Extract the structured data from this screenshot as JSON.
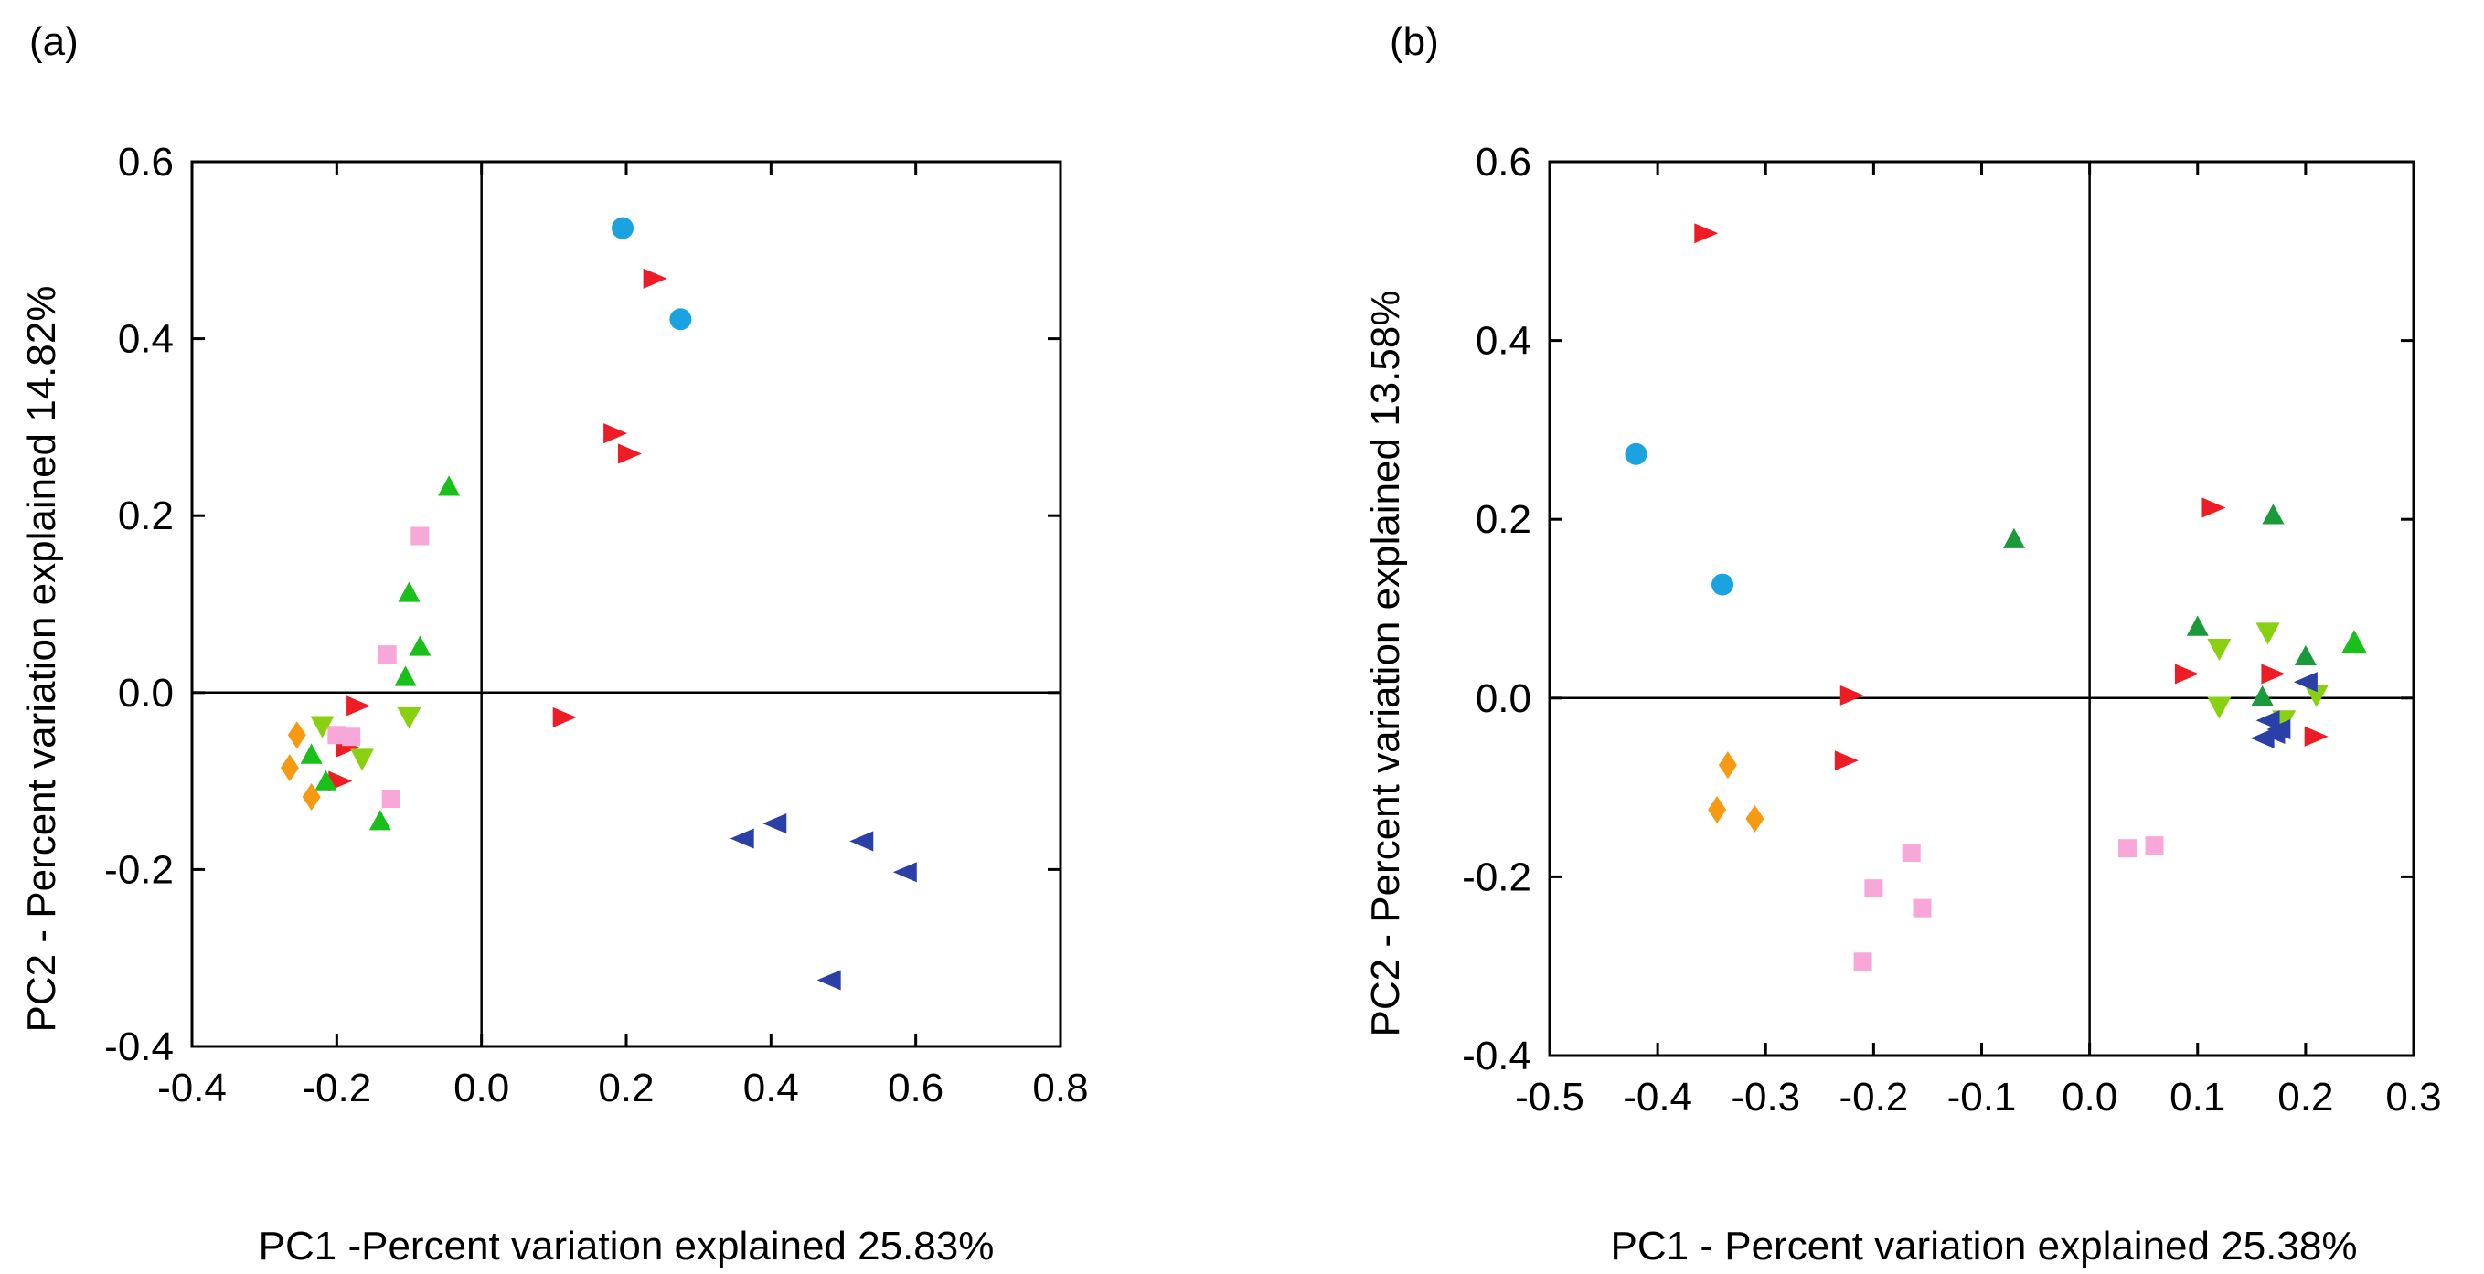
{
  "chart_data": [
    {
      "type": "scatter",
      "panel_label": "(a)",
      "xlabel": "PC1 -Percent variation explained 25.83%",
      "ylabel": "PC2 - Percent variation explained 14.82%",
      "xlim": [
        -0.4,
        0.8
      ],
      "ylim": [
        -0.4,
        0.6
      ],
      "xticks": [
        "-0.4",
        "-0.2",
        "0.0",
        "0.2",
        "0.4",
        "0.6",
        "0.8"
      ],
      "yticks": [
        "-0.4",
        "-0.2",
        "0.0",
        "0.2",
        "0.4",
        "0.6"
      ],
      "zero_lines": true,
      "grid": false,
      "series": [
        {
          "marker": "circle",
          "color": "#1aa3e0",
          "points": [
            [
              0.195,
              0.525
            ],
            [
              0.275,
              0.422
            ]
          ]
        },
        {
          "marker": "triangle-right",
          "color": "#ee1c25",
          "points": [
            [
              0.24,
              0.468
            ],
            [
              0.185,
              0.293
            ],
            [
              0.205,
              0.27
            ],
            [
              0.115,
              -0.028
            ],
            [
              -0.17,
              -0.015
            ],
            [
              -0.185,
              -0.062
            ],
            [
              -0.195,
              -0.1
            ]
          ]
        },
        {
          "marker": "triangle-up",
          "color": "#19c019",
          "points": [
            [
              -0.045,
              0.233
            ],
            [
              -0.1,
              0.113
            ],
            [
              -0.085,
              0.052
            ],
            [
              -0.105,
              0.018
            ],
            [
              -0.235,
              -0.07
            ],
            [
              -0.14,
              -0.145
            ],
            [
              -0.215,
              -0.1
            ]
          ]
        },
        {
          "marker": "square",
          "color": "#f8a8d8",
          "points": [
            [
              -0.085,
              0.177
            ],
            [
              -0.13,
              0.043
            ],
            [
              -0.2,
              -0.048
            ],
            [
              -0.18,
              -0.05
            ],
            [
              -0.125,
              -0.12
            ]
          ]
        },
        {
          "marker": "triangle-down",
          "color": "#88d010",
          "points": [
            [
              -0.1,
              -0.028
            ],
            [
              -0.22,
              -0.038
            ],
            [
              -0.165,
              -0.075
            ]
          ]
        },
        {
          "marker": "diamond",
          "color": "#f59a12",
          "points": [
            [
              -0.255,
              -0.048
            ],
            [
              -0.265,
              -0.085
            ],
            [
              -0.235,
              -0.118
            ]
          ]
        },
        {
          "marker": "triangle-left",
          "color": "#2a3fa8",
          "points": [
            [
              0.36,
              -0.165
            ],
            [
              0.405,
              -0.148
            ],
            [
              0.525,
              -0.168
            ],
            [
              0.585,
              -0.203
            ],
            [
              0.48,
              -0.325
            ]
          ]
        }
      ]
    },
    {
      "type": "scatter",
      "panel_label": "(b)",
      "xlabel": "PC1 - Percent variation explained 25.38%",
      "ylabel": "PC2 - Percent variation explained 13.58%",
      "xlim": [
        -0.5,
        0.3
      ],
      "ylim": [
        -0.4,
        0.6
      ],
      "xticks": [
        "-0.5",
        "-0.4",
        "-0.3",
        "-0.2",
        "-0.1",
        "0.0",
        "0.1",
        "0.2",
        "0.3"
      ],
      "yticks": [
        "-0.4",
        "-0.2",
        "0.0",
        "0.2",
        "0.4",
        "0.6"
      ],
      "zero_lines": true,
      "grid": false,
      "series": [
        {
          "marker": "circle",
          "color": "#1aa3e0",
          "points": [
            [
              -0.42,
              0.273
            ],
            [
              -0.34,
              0.127
            ]
          ]
        },
        {
          "marker": "triangle-right",
          "color": "#ee1c25",
          "points": [
            [
              -0.355,
              0.52
            ],
            [
              -0.22,
              0.003
            ],
            [
              -0.225,
              -0.07
            ],
            [
              0.115,
              0.213
            ],
            [
              0.09,
              0.027
            ],
            [
              0.17,
              0.027
            ],
            [
              0.21,
              -0.043
            ]
          ]
        },
        {
          "marker": "triangle-up",
          "color": "#1a9a3a",
          "points": [
            [
              -0.07,
              0.178
            ],
            [
              0.17,
              0.205
            ],
            [
              0.1,
              0.08
            ],
            [
              0.2,
              0.047
            ],
            [
              0.16,
              0.002
            ]
          ]
        },
        {
          "marker": "triangle-up-large",
          "color": "#19c019",
          "points": [
            [
              0.245,
              0.062
            ]
          ]
        },
        {
          "marker": "triangle-down",
          "color": "#88d010",
          "points": [
            [
              0.165,
              0.073
            ],
            [
              0.12,
              0.055
            ],
            [
              0.12,
              -0.01
            ],
            [
              0.18,
              -0.025
            ],
            [
              0.21,
              0.003
            ]
          ]
        },
        {
          "marker": "square",
          "color": "#f8a8d8",
          "points": [
            [
              -0.165,
              -0.173
            ],
            [
              -0.2,
              -0.213
            ],
            [
              -0.155,
              -0.235
            ],
            [
              -0.21,
              -0.295
            ],
            [
              0.035,
              -0.168
            ],
            [
              0.06,
              -0.165
            ]
          ]
        },
        {
          "marker": "diamond",
          "color": "#f59a12",
          "points": [
            [
              -0.335,
              -0.075
            ],
            [
              -0.345,
              -0.125
            ],
            [
              -0.31,
              -0.135
            ]
          ]
        },
        {
          "marker": "triangle-left",
          "color": "#2a3fa8",
          "points": [
            [
              0.2,
              0.018
            ],
            [
              0.165,
              -0.025
            ],
            [
              0.175,
              -0.035
            ],
            [
              0.16,
              -0.045
            ],
            [
              0.17,
              -0.04
            ]
          ]
        }
      ]
    }
  ]
}
